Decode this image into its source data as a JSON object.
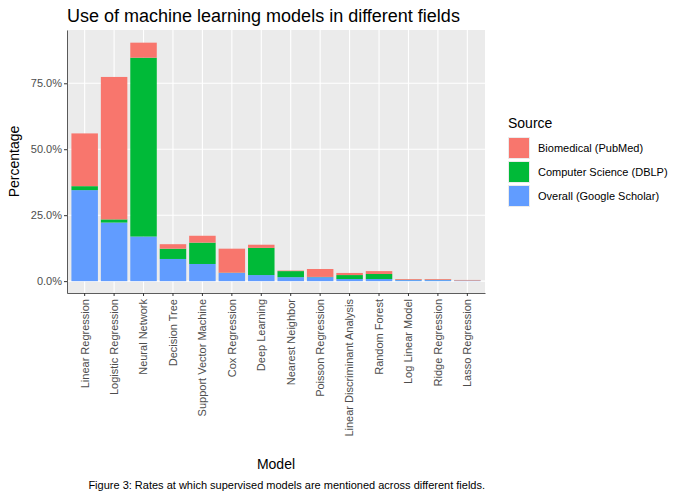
{
  "chart_data": {
    "type": "bar",
    "stacked": true,
    "title": "Use of machine learning models in different fields",
    "x_label": "Model",
    "y_label": "Percentage",
    "caption": "Figure 3: Rates at which supervised models are mentioned across different fields.",
    "legend_title": "Source",
    "legend": "right",
    "grid": true,
    "categories": [
      "Linear Regression",
      "Logistic Regression",
      "Neural Network",
      "Decision Tree",
      "Support Vector Machine",
      "Cox Regression",
      "Deep Learning",
      "Nearest Neighbor",
      "Poisson Regression",
      "Linear Discriminant Analysis",
      "Random Forest",
      "Log Linear Model",
      "Ridge Regression",
      "Lasso Regression"
    ],
    "series": [
      {
        "name": "Biomedical (PubMed)",
        "color": "#F8766D",
        "values": [
          20.0,
          54.0,
          5.7,
          1.7,
          2.6,
          9.1,
          1.2,
          0.2,
          3.0,
          0.8,
          1.1,
          0.3,
          0.3,
          0.2
        ]
      },
      {
        "name": "Computer Science (DBLP)",
        "color": "#00BA38",
        "values": [
          1.5,
          1.2,
          67.8,
          3.9,
          8.1,
          0.1,
          10.3,
          2.3,
          0.1,
          1.5,
          1.9,
          0.1,
          0.1,
          0.05
        ]
      },
      {
        "name": "Overall (Google Scholar)",
        "color": "#619CFF",
        "values": [
          34.5,
          22.2,
          16.9,
          8.4,
          6.5,
          3.1,
          2.3,
          1.5,
          1.5,
          0.8,
          0.8,
          0.4,
          0.4,
          0.2
        ]
      }
    ],
    "ylim": [
      -4.5,
      95.2
    ],
    "yticks": [
      {
        "value": 0,
        "label": "0.0%"
      },
      {
        "value": 25,
        "label": "25.0%"
      },
      {
        "value": 50,
        "label": "50.0%"
      },
      {
        "value": 75,
        "label": "75.0%"
      }
    ]
  }
}
